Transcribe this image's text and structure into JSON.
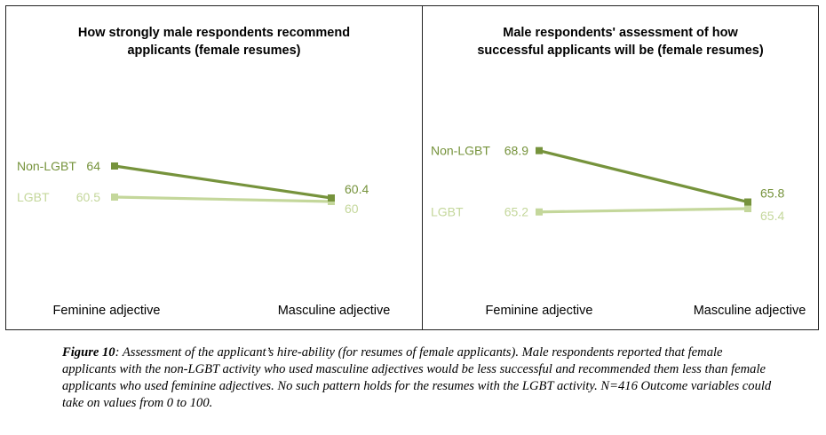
{
  "colors": {
    "non_lgbt": "#76933c",
    "lgbt": "#c4d79b"
  },
  "chart_data": [
    {
      "type": "line",
      "title_lines": [
        "How strongly male respondents recommend",
        "applicants (female resumes)"
      ],
      "categories": [
        "Feminine adjective",
        "Masculine adjective"
      ],
      "series": [
        {
          "name": "Non-LGBT",
          "values": [
            64,
            60.4
          ],
          "labels": [
            "64",
            "60.4"
          ]
        },
        {
          "name": "LGBT",
          "values": [
            60.5,
            60
          ],
          "labels": [
            "60.5",
            "60"
          ]
        }
      ],
      "ylim": [
        48,
        76
      ],
      "grid": false,
      "legend": "left, inline with series"
    },
    {
      "type": "line",
      "title_lines": [
        "Male respondents' assessment of how",
        "successful applicants will be (female resumes)"
      ],
      "categories": [
        "Feminine adjective",
        "Masculine adjective"
      ],
      "series": [
        {
          "name": "Non-LGBT",
          "values": [
            68.9,
            65.8
          ],
          "labels": [
            "68.9",
            "65.8"
          ]
        },
        {
          "name": "LGBT",
          "values": [
            65.2,
            65.4
          ],
          "labels": [
            "65.2",
            "65.4"
          ]
        }
      ],
      "ylim": [
        59.4,
        74.4
      ],
      "grid": false,
      "legend": "left, inline with series"
    }
  ],
  "caption": {
    "label": "Figure 10",
    "text": ": Assessment of the applicant’s hire-ability (for resumes of female applicants). Male respondents reported that female applicants with the non-LGBT activity who used masculine adjectives would be less successful and recommended them less than female applicants who used feminine adjectives. No such pattern holds for the resumes with the LGBT activity. N=416 Outcome variables could take on values from 0 to 100."
  }
}
